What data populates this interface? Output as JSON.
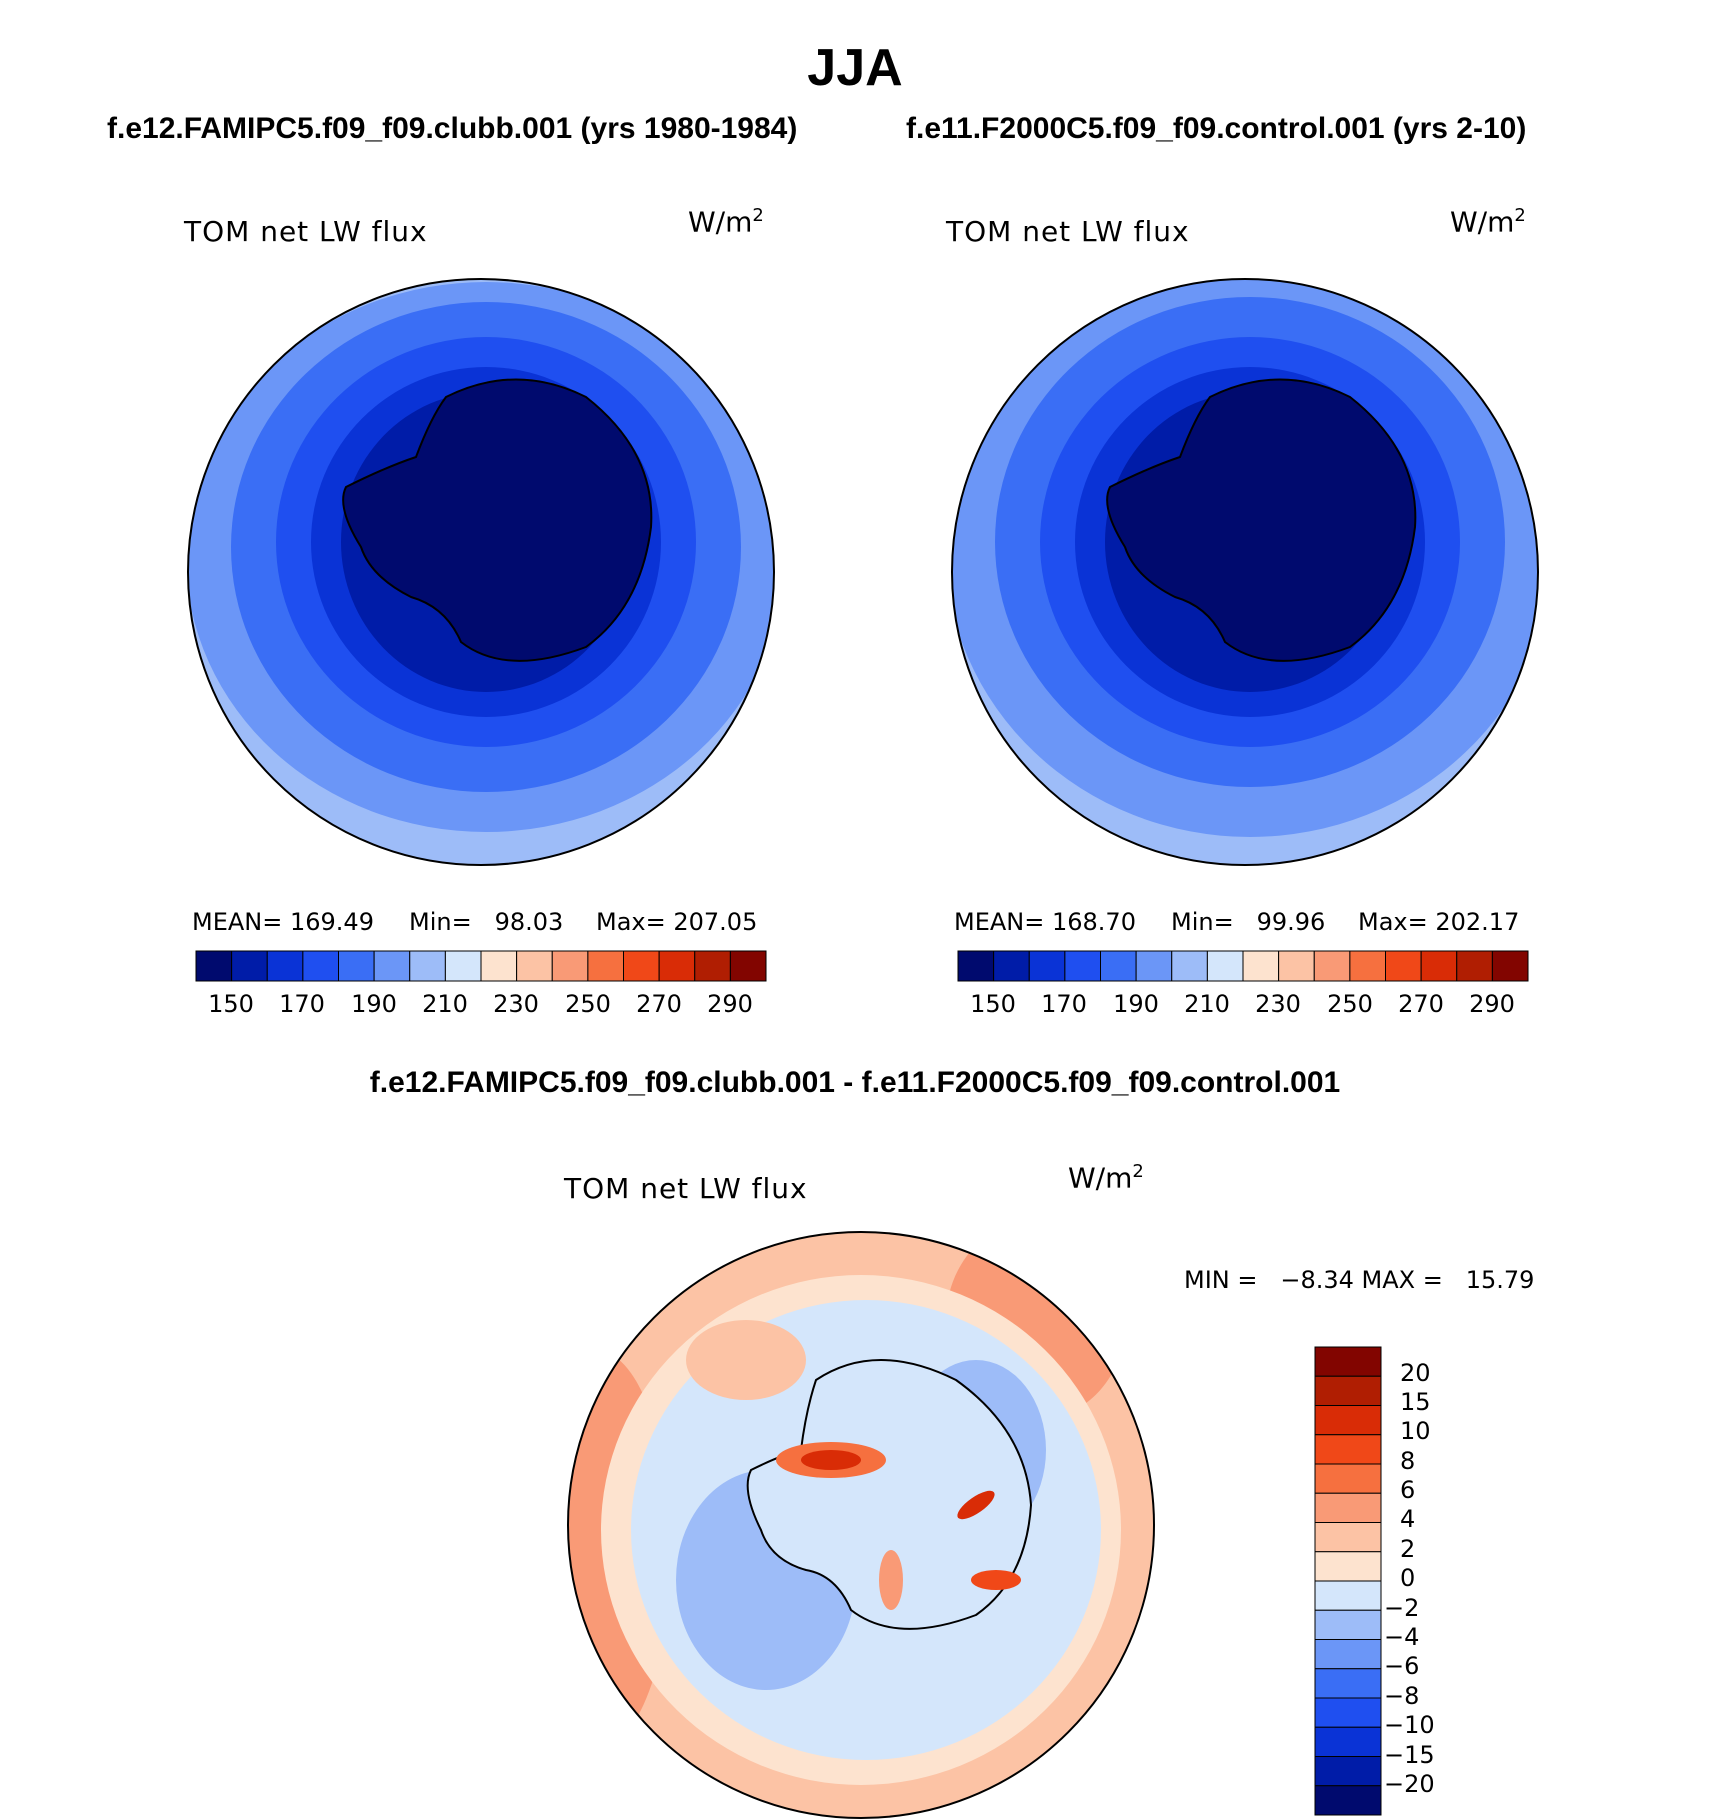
{
  "title": "JJA",
  "colors": {
    "abs_scale": [
      "#000a6e",
      "#001ca8",
      "#0a33d6",
      "#1f4ff0",
      "#3a6ef5",
      "#6b96f7",
      "#9dbcf8",
      "#d4e6fb",
      "#fde3cf",
      "#fcc3a5",
      "#f99a76",
      "#f6703f",
      "#f04818",
      "#d92c06",
      "#b01e02",
      "#820500"
    ],
    "diff_scale": [
      "#000a6e",
      "#001ca8",
      "#0a33d6",
      "#1f4ff0",
      "#3a6ef5",
      "#6b96f7",
      "#9dbcf8",
      "#d4e6fb",
      "#fde3cf",
      "#fcc3a5",
      "#f99a76",
      "#f6703f",
      "#f04818",
      "#d92c06",
      "#b01e02",
      "#820500"
    ]
  },
  "panels": [
    {
      "title": "f.e12.FAMIPC5.f09_f09.clubb.001 (yrs 1980-1984)",
      "label": "TOM net LW flux",
      "units_base": "W/m",
      "units_exp": "2",
      "mean": "MEAN= 169.49",
      "min": "Min=   98.03",
      "max": "Max= 207.05",
      "colorbar_ticks": [
        "150",
        "170",
        "190",
        "210",
        "230",
        "250",
        "270",
        "290"
      ]
    },
    {
      "title": "f.e11.F2000C5.f09_f09.control.001 (yrs 2-10)",
      "label": "TOM net LW flux",
      "units_base": "W/m",
      "units_exp": "2",
      "mean": "MEAN= 168.70",
      "min": "Min=   99.96",
      "max": "Max= 202.17",
      "colorbar_ticks": [
        "150",
        "170",
        "190",
        "210",
        "230",
        "250",
        "270",
        "290"
      ]
    }
  ],
  "difference": {
    "title": "f.e12.FAMIPC5.f09_f09.clubb.001 - f.e11.F2000C5.f09_f09.control.001",
    "label": "TOM net LW flux",
    "units_base": "W/m",
    "units_exp": "2",
    "minmax": "MIN =   −8.34 MAX =   15.79",
    "colorbar_ticks": [
      "20",
      "15",
      "10",
      "8",
      "6",
      "4",
      "2",
      "0",
      "−2",
      "−4",
      "−6",
      "−8",
      "−10",
      "−15",
      "−20"
    ]
  }
}
